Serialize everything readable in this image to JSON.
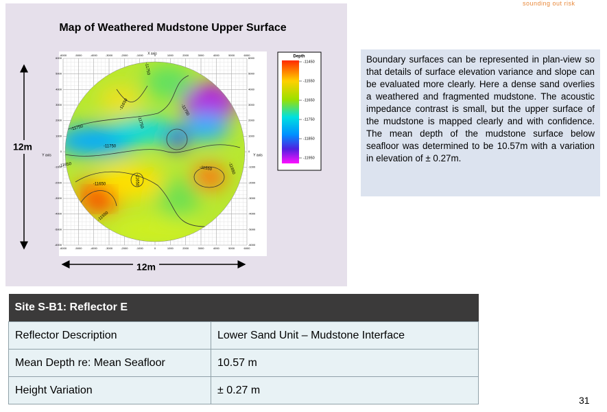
{
  "header": {
    "tagline": "sounding out risk"
  },
  "map": {
    "title": "Map of Weathered Mudstone Upper Surface",
    "x_axis_label": "X axis",
    "y_axis_label": "Y axis",
    "ticks": [
      -6000,
      -5000,
      -4000,
      -3000,
      -2000,
      -1000,
      0,
      1000,
      2000,
      3000,
      4000,
      5000,
      6000
    ],
    "legend": {
      "title": "Depth",
      "labels": [
        -11450,
        -11550,
        -11650,
        -11750,
        -11850,
        -11950
      ]
    },
    "contour_labels": [
      "-11750",
      "-11650",
      "-11750",
      "-11750",
      "-11750",
      "-11750",
      "-11650",
      "-11650",
      "-11650",
      "-11550",
      "-11650",
      "-11550"
    ],
    "height_label": "12m",
    "width_label": "12m"
  },
  "description": "Boundary surfaces can be represented in plan-view so that details of surface elevation variance and slope can be evaluated more clearly. Here a dense sand overlies a weathered and fragmented mudstone. The acoustic impedance contrast is small, but the upper surface of the mudstone is mapped clearly and with confidence.  The mean depth of the mudstone surface below seafloor was determined to be 10.57m with a variation in elevation of ± 0.27m.",
  "table": {
    "title": "Site S-B1: Reflector E",
    "rows": [
      [
        "Reflector Description",
        "Lower Sand Unit – Mudstone Interface"
      ],
      [
        "Mean Depth re: Mean Seafloor",
        "10.57 m"
      ],
      [
        "Height Variation",
        "± 0.27 m"
      ]
    ]
  },
  "page_number": "31"
}
